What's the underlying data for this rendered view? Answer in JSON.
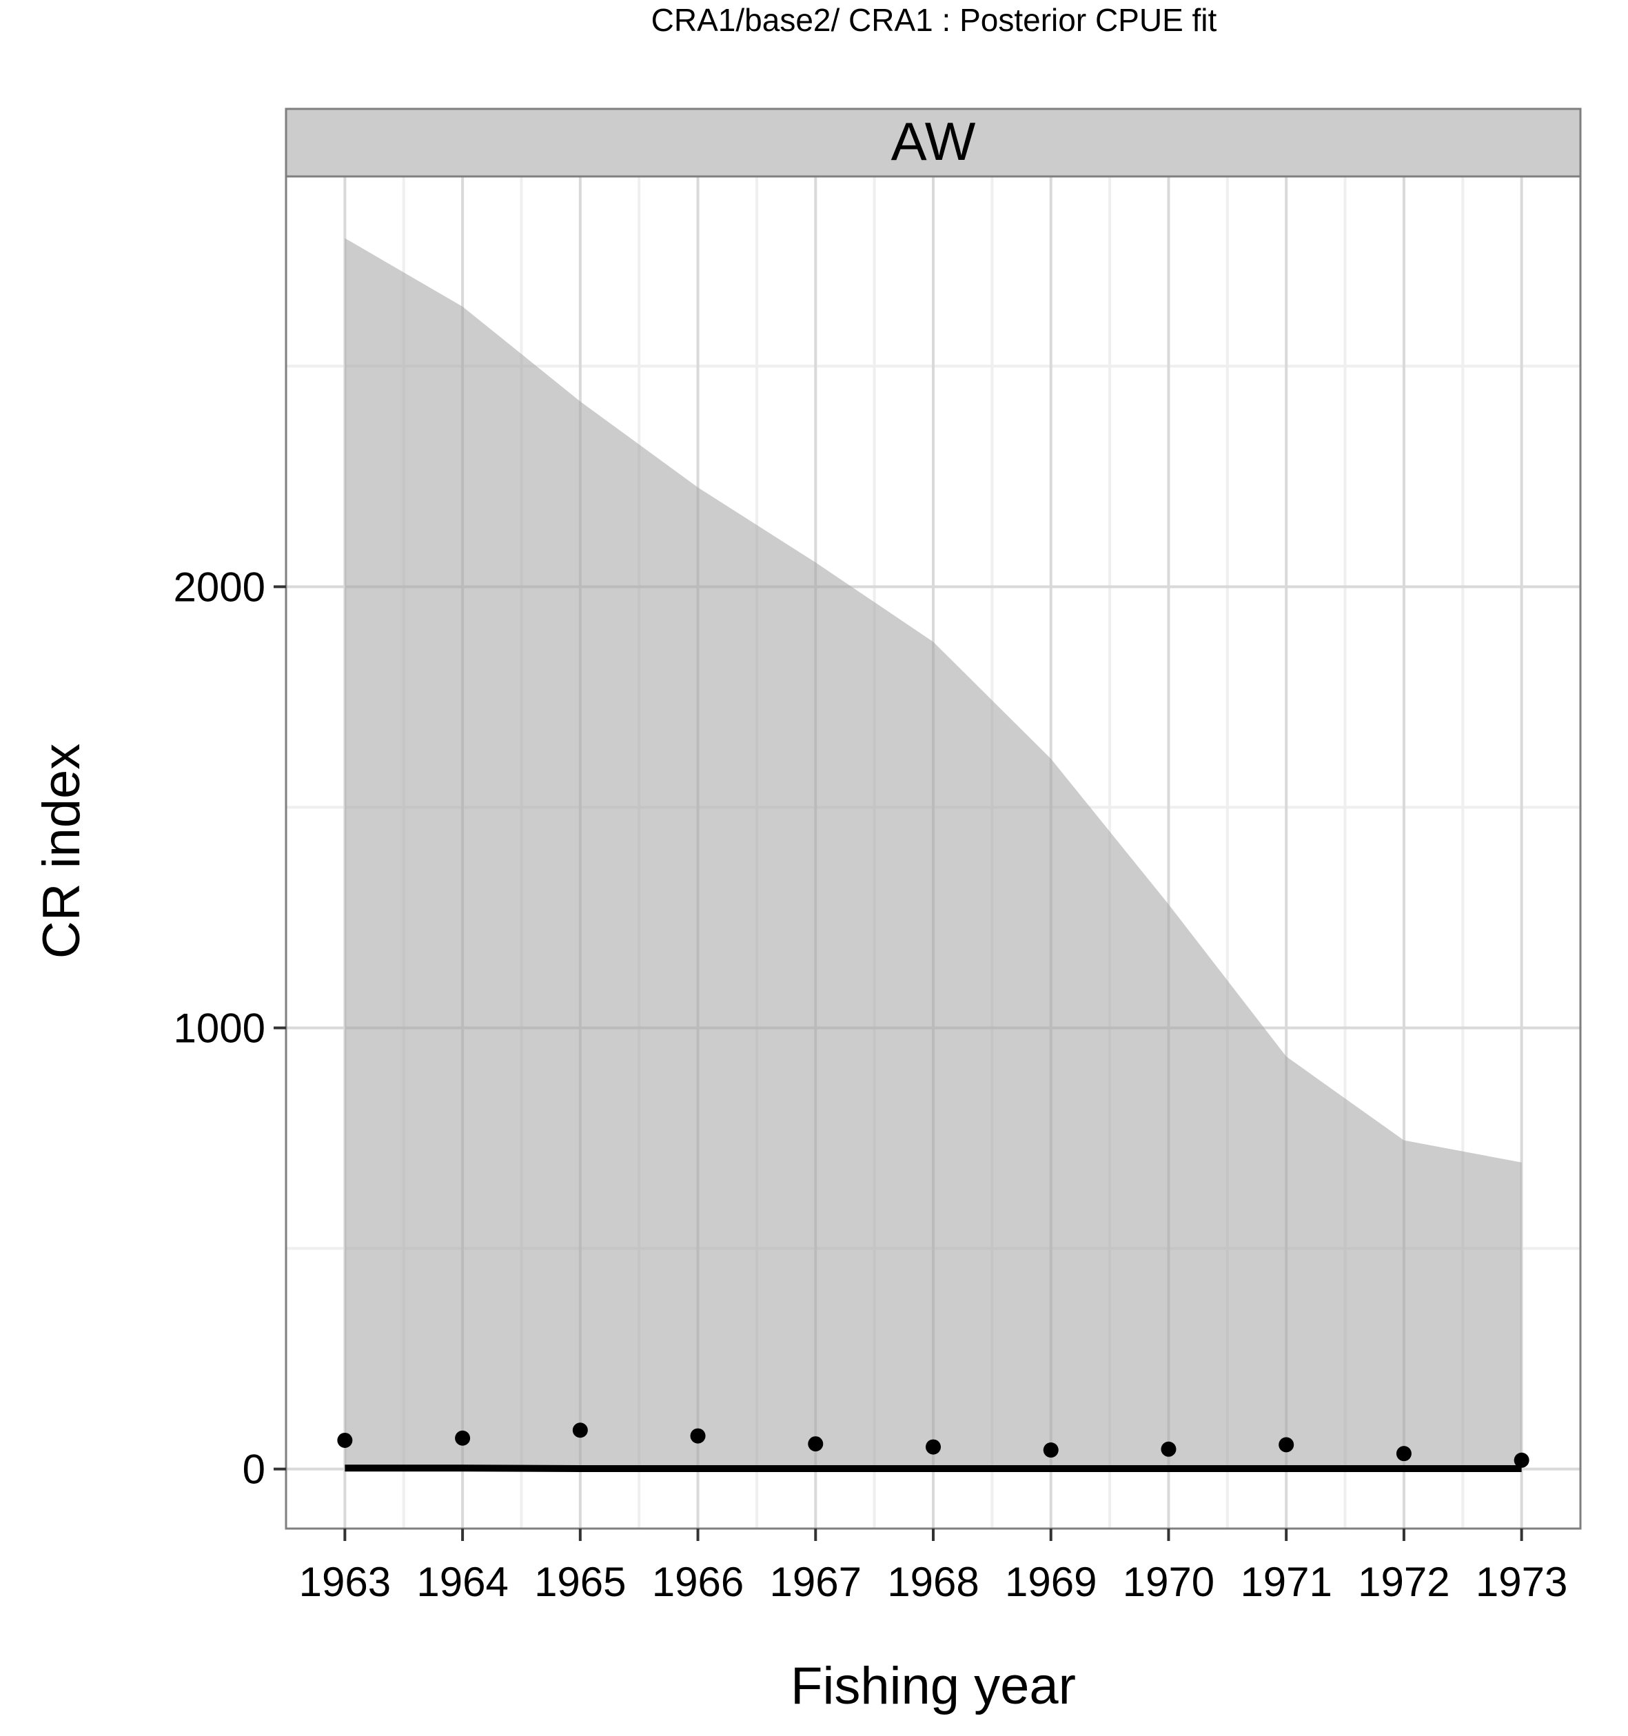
{
  "chart_data": {
    "type": "line",
    "title": "CRA1/base2/   CRA1 : Posterior CPUE fit",
    "panel": "AW",
    "xlabel": "Fishing year",
    "ylabel": "CR index",
    "x": [
      1963,
      1964,
      1965,
      1966,
      1967,
      1968,
      1969,
      1970,
      1971,
      1972,
      1973
    ],
    "xlim": [
      1962.5,
      1973.5
    ],
    "ylim": [
      -135,
      2930
    ],
    "yticks": [
      0,
      1000,
      2000
    ],
    "grid": true,
    "series": [
      {
        "kind": "ribbon",
        "lower": [
          0,
          0,
          0,
          0,
          0,
          0,
          0,
          0,
          0,
          0,
          0
        ],
        "upper": [
          2790,
          2635,
          2420,
          2225,
          2055,
          1875,
          1610,
          1280,
          935,
          745,
          695
        ]
      },
      {
        "kind": "line",
        "values": [
          2,
          2,
          1,
          1,
          1,
          1,
          1,
          1,
          1,
          1,
          1
        ]
      },
      {
        "kind": "points",
        "values": [
          65,
          70,
          88,
          75,
          57,
          50,
          43,
          45,
          55,
          35,
          20
        ]
      }
    ],
    "colors": {
      "panel_background": "#ffffff",
      "grid_major": "#d9d9d9",
      "grid_minor": "#efefef",
      "ribbon": "#a3a3a3",
      "strip": "#cccccc",
      "border": "#7f7f7f",
      "line": "#000000",
      "points": "#000000"
    }
  }
}
